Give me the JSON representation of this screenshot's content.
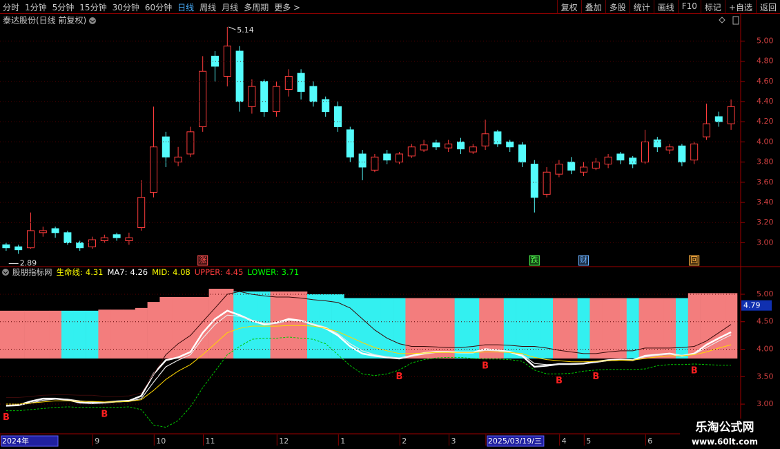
{
  "toolbar": {
    "left": [
      "分时",
      "1分钟",
      "5分钟",
      "15分钟",
      "30分钟",
      "60分钟",
      "日线",
      "周线",
      "月线",
      "多周期",
      "更多 >"
    ],
    "active": 6,
    "right": [
      "复权",
      "叠加",
      "多股",
      "统计",
      "画线",
      "F10",
      "标记",
      "+自选",
      "返回"
    ]
  },
  "chart_data": [
    {
      "type": "candlestick",
      "title": "泰达股份(日线 前复权)",
      "open": [
        2.98,
        2.96,
        2.95,
        3.1,
        3.14,
        3.1,
        3.0,
        2.96,
        3.02,
        3.08,
        3.02,
        3.15,
        3.5,
        4.05,
        3.8,
        3.88,
        4.15,
        4.85,
        4.65,
        4.9,
        4.35,
        4.6,
        4.3,
        4.52,
        4.68,
        4.55,
        4.42,
        4.35,
        4.12,
        3.88,
        3.72,
        3.88,
        3.8,
        3.86,
        3.92,
        3.99,
        3.94,
        4.0,
        3.9,
        3.96,
        4.1,
        4.0,
        3.97,
        3.78,
        3.48,
        3.68,
        3.8,
        3.7,
        3.74,
        3.78,
        3.88,
        3.84,
        3.8,
        4.02,
        3.92,
        3.96,
        3.82,
        4.05,
        4.25,
        4.18
      ],
      "high": [
        3.0,
        2.98,
        3.3,
        3.16,
        3.16,
        3.12,
        3.02,
        3.06,
        3.08,
        3.1,
        3.1,
        3.62,
        4.35,
        4.1,
        3.95,
        4.15,
        4.85,
        4.9,
        5.14,
        4.95,
        4.62,
        4.62,
        4.6,
        4.72,
        4.72,
        4.6,
        4.45,
        4.4,
        4.15,
        3.92,
        3.88,
        3.92,
        3.9,
        3.98,
        4.02,
        4.02,
        4.02,
        4.04,
        3.98,
        4.22,
        4.12,
        4.02,
        4.0,
        3.82,
        3.75,
        3.82,
        3.85,
        3.8,
        3.84,
        3.88,
        3.9,
        3.86,
        4.12,
        4.05,
        3.98,
        3.98,
        4.0,
        4.38,
        4.3,
        4.42
      ],
      "low": [
        2.92,
        2.89,
        2.94,
        3.06,
        3.05,
        2.98,
        2.92,
        2.94,
        3.0,
        3.02,
        2.98,
        3.12,
        3.45,
        3.75,
        3.76,
        3.85,
        4.1,
        4.6,
        4.55,
        4.3,
        4.28,
        4.25,
        4.25,
        4.45,
        4.42,
        4.35,
        4.25,
        4.1,
        3.8,
        3.62,
        3.7,
        3.78,
        3.78,
        3.84,
        3.9,
        3.92,
        3.9,
        3.88,
        3.88,
        3.92,
        3.95,
        3.9,
        3.75,
        3.3,
        3.45,
        3.65,
        3.68,
        3.66,
        3.72,
        3.74,
        3.78,
        3.74,
        3.78,
        3.9,
        3.88,
        3.76,
        3.78,
        4.02,
        4.15,
        4.12
      ],
      "close": [
        2.95,
        2.93,
        3.12,
        3.12,
        3.1,
        3.0,
        2.95,
        3.03,
        3.05,
        3.05,
        3.05,
        3.45,
        3.95,
        3.85,
        3.85,
        4.1,
        4.7,
        4.75,
        4.95,
        4.4,
        4.55,
        4.3,
        4.55,
        4.65,
        4.5,
        4.4,
        4.3,
        4.15,
        3.85,
        3.75,
        3.85,
        3.82,
        3.88,
        3.95,
        3.97,
        3.95,
        3.98,
        3.93,
        3.95,
        4.08,
        3.98,
        3.95,
        3.8,
        3.45,
        3.7,
        3.78,
        3.72,
        3.75,
        3.8,
        3.85,
        3.82,
        3.78,
        4.0,
        3.95,
        3.95,
        3.8,
        3.98,
        4.18,
        4.2,
        4.35
      ],
      "up_color": "#ff3c3c",
      "down_color": "#54fcfc",
      "ylim": [
        2.77,
        5.27
      ],
      "yticks": [
        {
          "value": 3.0,
          "label": "3.00"
        },
        {
          "value": 3.2,
          "label": "3.20"
        },
        {
          "value": 3.4,
          "label": "3.40"
        },
        {
          "value": 3.6,
          "label": "3.60"
        },
        {
          "value": 3.8,
          "label": "3.80"
        },
        {
          "value": 4.0,
          "label": "4.00"
        },
        {
          "value": 4.2,
          "label": "4.20"
        },
        {
          "value": 4.4,
          "label": "4.40"
        },
        {
          "value": 4.6,
          "label": "4.60"
        },
        {
          "value": 4.8,
          "label": "4.80"
        },
        {
          "value": 5.0,
          "label": "5.00"
        }
      ],
      "grid": true,
      "max_label": 5.14,
      "min_label": 2.89,
      "events": [
        {
          "index": 16,
          "label": "涨",
          "color": "#ff5050"
        },
        {
          "index": 43,
          "label": "跌",
          "color": "#50ff50"
        },
        {
          "index": 47,
          "label": "财",
          "color": "#6ab0ff"
        },
        {
          "index": 56,
          "label": "回",
          "color": "#ffb040"
        }
      ]
    },
    {
      "type": "indicator",
      "title": "股朋指标网",
      "categories": [
        "2024年",
        null,
        null,
        null,
        null,
        null,
        null,
        null,
        "9",
        null,
        null,
        null,
        null,
        "10",
        null,
        null,
        null,
        "11",
        null,
        null,
        null,
        null,
        null,
        "12",
        null,
        null,
        null,
        null,
        "1",
        null,
        null,
        null,
        null,
        "2",
        null,
        null,
        null,
        "3",
        null,
        null,
        "2025/03/19/三",
        null,
        null,
        null,
        null,
        null,
        "4",
        null,
        "5",
        null,
        null,
        null,
        null,
        "6",
        null,
        null,
        null,
        null,
        null,
        null
      ],
      "bars": {
        "values": [
          4.7,
          4.7,
          4.7,
          4.7,
          4.7,
          4.7,
          4.7,
          4.7,
          4.72,
          4.72,
          4.72,
          4.75,
          4.86,
          4.95,
          4.95,
          4.95,
          4.95,
          5.1,
          5.1,
          5.05,
          5.05,
          5.05,
          5.05,
          5.05,
          5.05,
          5.0,
          5.0,
          5.0,
          4.93,
          4.93,
          4.93,
          4.93,
          4.93,
          4.93,
          4.93,
          4.93,
          4.93,
          4.93,
          4.93,
          4.93,
          4.93,
          4.93,
          4.93,
          4.93,
          4.93,
          4.93,
          4.93,
          4.93,
          4.93,
          4.93,
          4.93,
          4.93,
          4.93,
          4.93,
          4.93,
          4.93,
          5.02,
          5.02,
          5.02,
          5.02
        ],
        "colors": [
          "#f37d7d",
          "#f37d7d",
          "#f37d7d",
          "#f37d7d",
          "#f37d7d",
          "#33f0f0",
          "#33f0f0",
          "#33f0f0",
          "#f37d7d",
          "#f37d7d",
          "#f37d7d",
          "#f37d7d",
          "#f37d7d",
          "#f37d7d",
          "#f37d7d",
          "#f37d7d",
          "#f37d7d",
          "#f37d7d",
          "#f37d7d",
          "#33f0f0",
          "#33f0f0",
          "#33f0f0",
          "#f37d7d",
          "#f37d7d",
          "#f37d7d",
          "#33f0f0",
          "#33f0f0",
          "#33f0f0",
          "#33f0f0",
          "#33f0f0",
          "#33f0f0",
          "#33f0f0",
          "#33f0f0",
          "#f37d7d",
          "#f37d7d",
          "#f37d7d",
          "#f37d7d",
          "#33f0f0",
          "#33f0f0",
          "#f37d7d",
          "#f37d7d",
          "#33f0f0",
          "#33f0f0",
          "#33f0f0",
          "#33f0f0",
          "#f37d7d",
          "#f37d7d",
          "#33f0f0",
          "#f37d7d",
          "#f37d7d",
          "#f37d7d",
          "#33f0f0",
          "#f37d7d",
          "#f37d7d",
          "#f37d7d",
          "#33f0f0",
          "#f37d7d",
          "#f37d7d",
          "#f37d7d",
          "#f37d7d"
        ]
      },
      "legend_separator": ":",
      "series": [
        {
          "name": "生命线",
          "color": "#ffffff",
          "label_color": "#ffff00",
          "width": 2.5,
          "values": [
            2.97,
            2.98,
            3.05,
            3.1,
            3.1,
            3.08,
            3.03,
            3.02,
            3.03,
            3.05,
            3.06,
            3.15,
            3.55,
            3.8,
            3.85,
            3.95,
            4.3,
            4.55,
            4.7,
            4.62,
            4.52,
            4.45,
            4.48,
            4.55,
            4.52,
            4.45,
            4.38,
            4.25,
            4.05,
            3.92,
            3.88,
            3.85,
            3.83,
            3.88,
            3.93,
            3.95,
            3.95,
            3.94,
            3.94,
            4.0,
            3.98,
            3.95,
            3.88,
            3.68,
            3.7,
            3.73,
            3.73,
            3.74,
            3.77,
            3.8,
            3.81,
            3.8,
            3.88,
            3.9,
            3.92,
            3.88,
            3.92,
            4.08,
            4.2,
            4.31
          ]
        },
        {
          "name": "MA7",
          "color": "#e8e8e8",
          "label_color": "#ffffff",
          "width": 1.2,
          "values": [
            2.98,
            2.98,
            3.02,
            3.07,
            3.09,
            3.09,
            3.06,
            3.04,
            3.03,
            3.04,
            3.05,
            3.1,
            3.4,
            3.68,
            3.8,
            3.9,
            4.2,
            4.45,
            4.62,
            4.6,
            4.53,
            4.47,
            4.47,
            4.52,
            4.51,
            4.46,
            4.4,
            4.28,
            4.1,
            3.97,
            3.9,
            3.86,
            3.84,
            3.87,
            3.91,
            3.94,
            3.95,
            3.94,
            3.94,
            3.98,
            3.97,
            3.95,
            3.9,
            3.74,
            3.72,
            3.73,
            3.73,
            3.74,
            3.76,
            3.79,
            3.8,
            3.8,
            3.86,
            3.89,
            3.91,
            3.89,
            3.91,
            4.03,
            4.15,
            4.26
          ]
        },
        {
          "name": "MID",
          "color": "#ffd700",
          "label_color": "#ffff00",
          "width": 1,
          "values": [
            3.0,
            3.0,
            3.02,
            3.04,
            3.06,
            3.06,
            3.05,
            3.05,
            3.04,
            3.04,
            3.05,
            3.08,
            3.25,
            3.45,
            3.6,
            3.72,
            3.9,
            4.1,
            4.3,
            4.38,
            4.42,
            4.42,
            4.42,
            4.43,
            4.43,
            4.42,
            4.38,
            4.32,
            4.22,
            4.12,
            4.03,
            3.97,
            3.92,
            3.92,
            3.93,
            3.94,
            3.94,
            3.94,
            3.94,
            3.95,
            3.95,
            3.94,
            3.92,
            3.85,
            3.81,
            3.79,
            3.77,
            3.77,
            3.78,
            3.79,
            3.8,
            3.8,
            3.83,
            3.86,
            3.88,
            3.88,
            3.9,
            3.95,
            4.02,
            4.08
          ]
        },
        {
          "name": "UPPER",
          "color": "#3a0a0a",
          "label_color": "#ff3c3c",
          "width": 1,
          "values": [
            3.12,
            3.12,
            3.14,
            3.16,
            3.17,
            3.17,
            3.16,
            3.16,
            3.14,
            3.14,
            3.15,
            3.2,
            3.55,
            3.9,
            4.1,
            4.25,
            4.5,
            4.75,
            5.0,
            5.05,
            5.0,
            4.97,
            4.95,
            4.95,
            4.93,
            4.9,
            4.88,
            4.85,
            4.75,
            4.55,
            4.35,
            4.2,
            4.1,
            4.05,
            4.05,
            4.04,
            4.03,
            4.03,
            4.05,
            4.08,
            4.08,
            4.07,
            4.05,
            4.05,
            4.02,
            3.98,
            3.95,
            3.92,
            3.92,
            3.95,
            3.97,
            3.97,
            4.02,
            4.02,
            4.02,
            4.03,
            4.05,
            4.15,
            4.3,
            4.45
          ]
        },
        {
          "name": "LOWER",
          "color": "#00c800",
          "label_color": "#00ff00",
          "width": 1,
          "dashed": true,
          "values": [
            2.88,
            2.88,
            2.9,
            2.92,
            2.94,
            2.95,
            2.94,
            2.94,
            2.94,
            2.94,
            2.95,
            2.9,
            2.62,
            2.58,
            2.7,
            2.95,
            3.3,
            3.6,
            3.9,
            4.05,
            4.18,
            4.2,
            4.2,
            4.22,
            4.2,
            4.18,
            4.1,
            3.9,
            3.7,
            3.55,
            3.52,
            3.55,
            3.62,
            3.75,
            3.81,
            3.84,
            3.85,
            3.85,
            3.83,
            3.82,
            3.82,
            3.81,
            3.78,
            3.62,
            3.55,
            3.55,
            3.56,
            3.6,
            3.62,
            3.63,
            3.63,
            3.63,
            3.64,
            3.7,
            3.72,
            3.72,
            3.73,
            3.72,
            3.71,
            3.71
          ]
        }
      ],
      "ylim": [
        2.46,
        5.49
      ],
      "yticks": [
        {
          "value": 3.0,
          "label": "3.00"
        },
        {
          "value": 3.5,
          "label": "3.50"
        },
        {
          "value": 4.0,
          "label": "4.00"
        },
        {
          "value": 4.5,
          "label": "4.50"
        },
        {
          "value": 5.0,
          "label": "5.00"
        }
      ],
      "grid": true,
      "cursor_value": 4.79,
      "signals": [
        {
          "index": 0,
          "label": "B"
        },
        {
          "index": 8,
          "label": "B"
        },
        {
          "index": 32,
          "label": "B"
        },
        {
          "index": 39,
          "label": "B"
        },
        {
          "index": 45,
          "label": "B"
        },
        {
          "index": 48,
          "label": "B"
        },
        {
          "index": 56,
          "label": "B"
        }
      ]
    }
  ],
  "watermark": {
    "title": "乐淘公式网",
    "url": "www.60lt.com"
  }
}
